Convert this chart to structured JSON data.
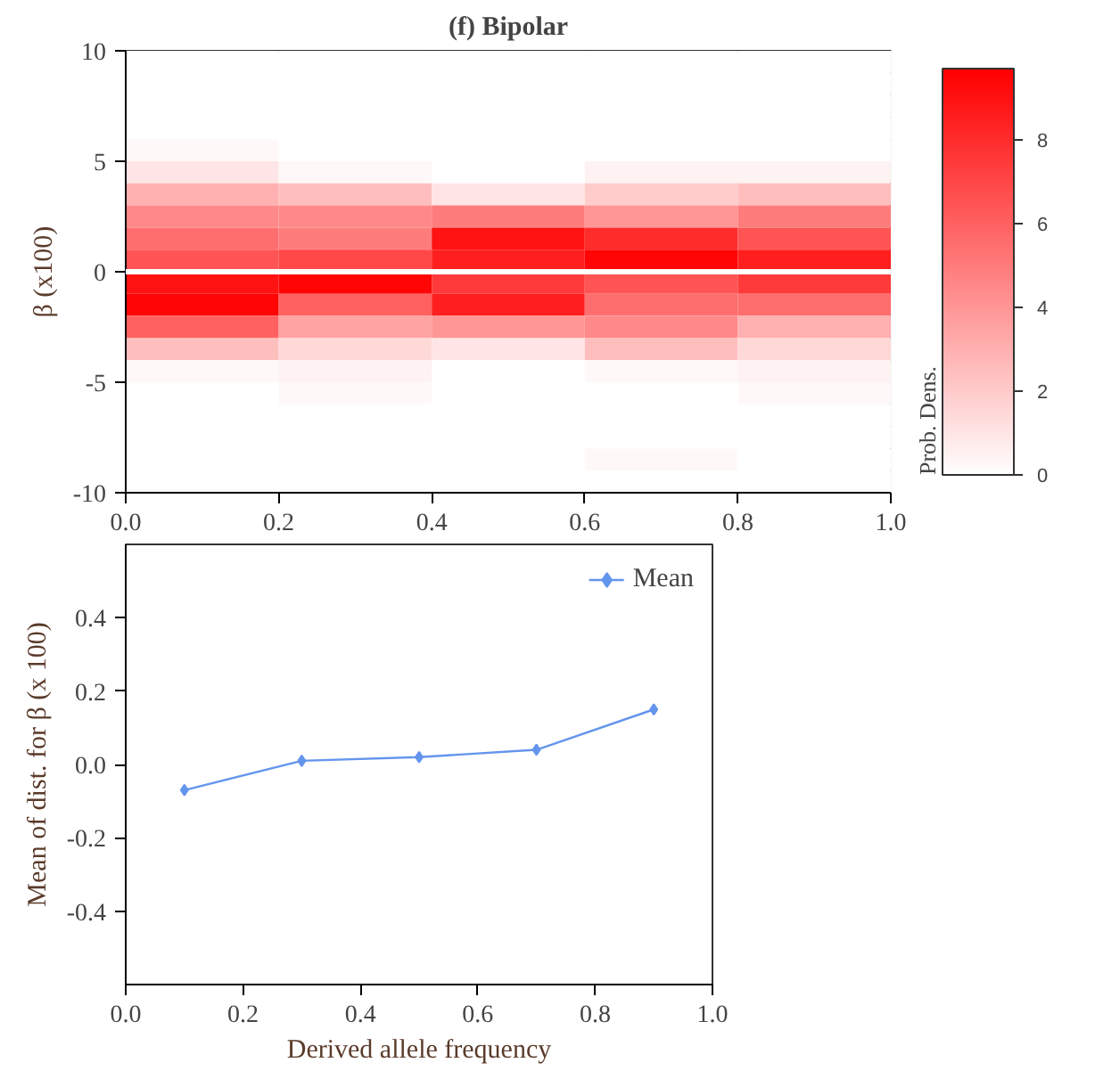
{
  "chart_data": [
    {
      "type": "heatmap",
      "title": "(f) Bipolar",
      "ylabel": "β (x100)",
      "clabel": "Prob. Dens.",
      "color": "#ff0000",
      "x": [
        0.1,
        0.3,
        0.5,
        0.7,
        0.9
      ],
      "y": [
        9.5,
        8.5,
        7.5,
        6.5,
        5.5,
        4.5,
        3.5,
        2.5,
        1.5,
        0.5,
        -0.5,
        -1.5,
        -2.5,
        -3.5,
        -4.5,
        -5.5,
        -6.5,
        -7.5,
        -8.5,
        -9.5
      ],
      "xlim": [
        0,
        1
      ],
      "xticks": [
        {
          "value": 0,
          "label": "0.0"
        },
        {
          "value": 0.2,
          "label": "0.2"
        },
        {
          "value": 0.4,
          "label": "0.4"
        },
        {
          "value": 0.6,
          "label": "0.6"
        },
        {
          "value": 0.8,
          "label": "0.8"
        },
        {
          "value": 1,
          "label": "1.0"
        }
      ],
      "ylim": [
        -10,
        10
      ],
      "yticks": [
        -10,
        -5,
        0,
        5,
        10
      ],
      "cells": [
        [
          0,
          0,
          0,
          0,
          0
        ],
        [
          0,
          0,
          0,
          0,
          0
        ],
        [
          0,
          0,
          0,
          0,
          0
        ],
        [
          0,
          0,
          0,
          0,
          0
        ],
        [
          0.3,
          0,
          0,
          0,
          0
        ],
        [
          1,
          0.3,
          0,
          0.5,
          0.5
        ],
        [
          3,
          2.5,
          1,
          2,
          2.5
        ],
        [
          4.5,
          4.5,
          5,
          4,
          5
        ],
        [
          5.5,
          5,
          9,
          8,
          6.5
        ],
        [
          6.5,
          7,
          8.5,
          9.5,
          8.5
        ],
        [
          9,
          9.5,
          7.5,
          6.5,
          7.5
        ],
        [
          9.5,
          6,
          8.5,
          5.5,
          5.5
        ],
        [
          6,
          3.5,
          4,
          4.5,
          3
        ],
        [
          2.5,
          1.5,
          1,
          2.5,
          1.5
        ],
        [
          0.3,
          0.5,
          0,
          0.3,
          0.5
        ],
        [
          0,
          0.3,
          0,
          0,
          0.3
        ],
        [
          0,
          0,
          0,
          0,
          0
        ],
        [
          0,
          0,
          0,
          0,
          0
        ],
        [
          0,
          0,
          0,
          0.3,
          0
        ],
        [
          0,
          0,
          0,
          0,
          0
        ]
      ],
      "clim": [
        0,
        9.7
      ],
      "cticks": [
        0,
        2,
        4,
        6,
        8
      ],
      "ref_lines": [
        {
          "axis": "y",
          "value": 0,
          "color": "#ffffff"
        }
      ]
    },
    {
      "type": "line",
      "xlabel": "Derived allele frequency",
      "ylabel": "Mean of dist. for β (x 100)",
      "marker": "diamond",
      "legend": "top right",
      "xlim": [
        0,
        1
      ],
      "xticks": [
        {
          "value": 0,
          "label": "0.0"
        },
        {
          "value": 0.2,
          "label": "0.2"
        },
        {
          "value": 0.4,
          "label": "0.4"
        },
        {
          "value": 0.6,
          "label": "0.6"
        },
        {
          "value": 0.8,
          "label": "0.8"
        },
        {
          "value": 1,
          "label": "1.0"
        }
      ],
      "ylim": [
        -0.6,
        0.6
      ],
      "yticks": [
        {
          "value": -0.4,
          "label": "-0.4"
        },
        {
          "value": -0.2,
          "label": "-0.2"
        },
        {
          "value": 0,
          "label": "0.0"
        },
        {
          "value": 0.2,
          "label": "0.2"
        },
        {
          "value": 0.4,
          "label": "0.4"
        }
      ],
      "x": [
        0.1,
        0.3,
        0.5,
        0.7,
        0.9
      ],
      "series": [
        {
          "name": "Mean",
          "color": "#6495ed",
          "values": [
            -0.07,
            0.01,
            0.02,
            0.04,
            0.15
          ]
        }
      ]
    }
  ]
}
